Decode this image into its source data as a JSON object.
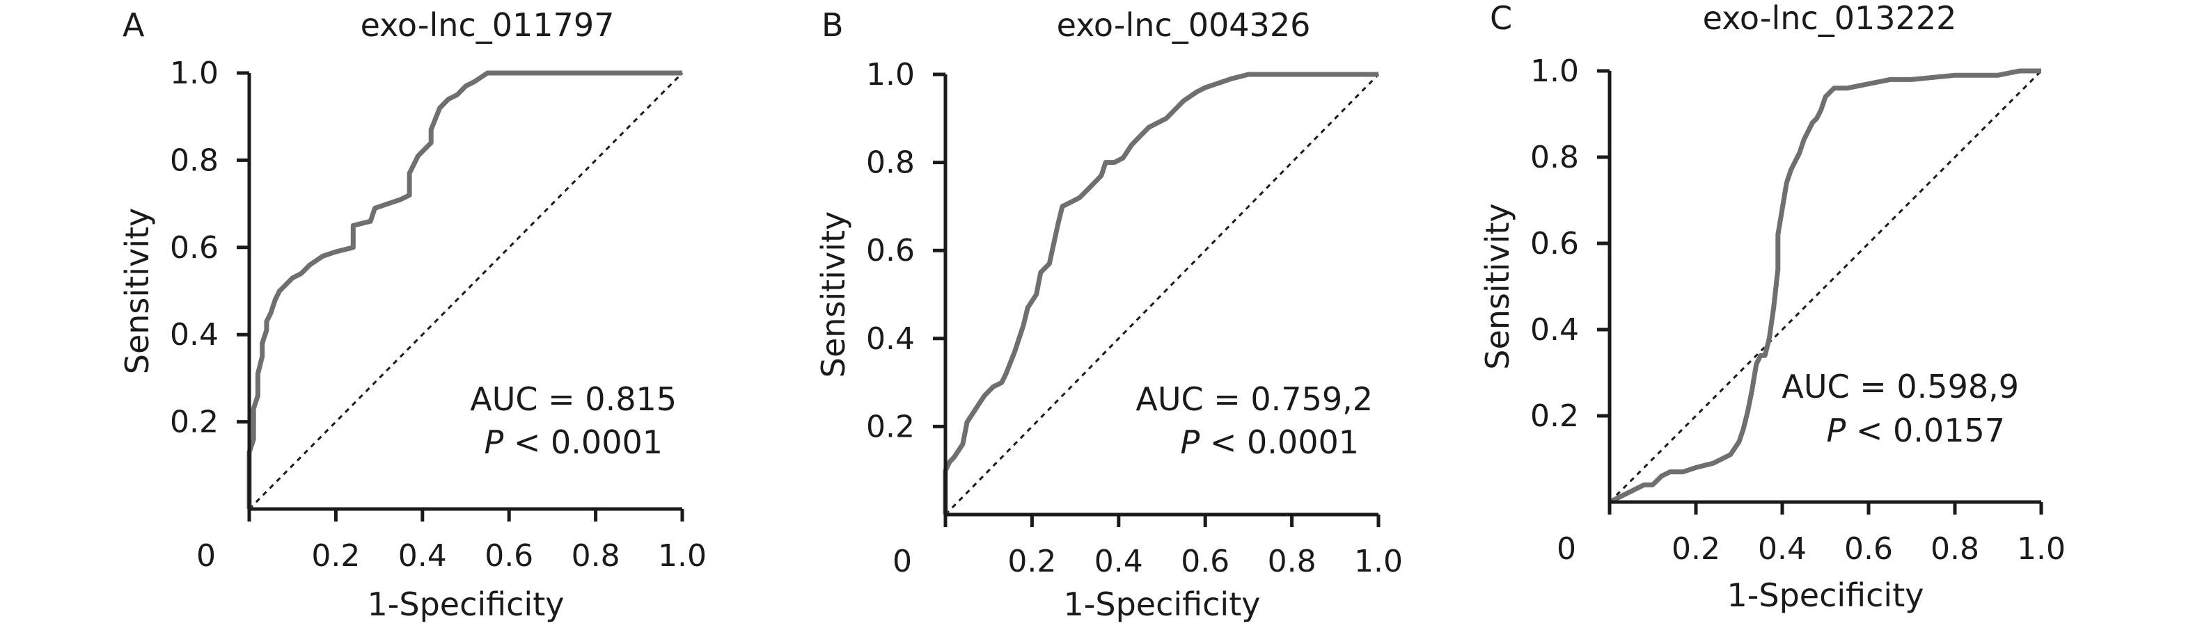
{
  "chart_data": [
    {
      "type": "line",
      "panel_label": "A",
      "title": "exo-lnc_011797",
      "xlabel": "1-Specificity",
      "ylabel": "Sensitivity",
      "xlim": [
        0,
        1
      ],
      "ylim": [
        0,
        1
      ],
      "origin_label": "0",
      "x_ticks": [
        "0.2",
        "0.4",
        "0.6",
        "0.8",
        "1.0"
      ],
      "y_ticks": [
        "0.2",
        "0.4",
        "0.6",
        "0.8",
        "1.0"
      ],
      "annotation": {
        "auc": "AUC = 0.815",
        "p_italic": "P",
        "p_rest": " < 0.0001"
      },
      "reference_line": {
        "x": [
          0,
          1
        ],
        "y": [
          0,
          1
        ],
        "style": "dashed"
      },
      "series": [
        {
          "x": [
            0.0,
            0.0,
            0.01,
            0.01,
            0.02,
            0.02,
            0.03,
            0.03,
            0.04,
            0.04,
            0.05,
            0.06,
            0.07,
            0.08,
            0.1,
            0.12,
            0.14,
            0.17,
            0.2,
            0.24,
            0.24,
            0.28,
            0.29,
            0.32,
            0.35,
            0.37,
            0.37,
            0.39,
            0.42,
            0.42,
            0.44,
            0.46,
            0.48,
            0.5,
            0.52,
            0.55,
            0.6,
            0.7,
            0.8,
            0.9,
            1.0
          ],
          "y": [
            0.0,
            0.13,
            0.16,
            0.23,
            0.26,
            0.31,
            0.35,
            0.38,
            0.41,
            0.43,
            0.45,
            0.48,
            0.5,
            0.51,
            0.53,
            0.54,
            0.56,
            0.58,
            0.59,
            0.6,
            0.65,
            0.66,
            0.69,
            0.7,
            0.71,
            0.72,
            0.77,
            0.81,
            0.84,
            0.87,
            0.92,
            0.94,
            0.95,
            0.97,
            0.98,
            1.0,
            1.0,
            1.0,
            1.0,
            1.0,
            1.0
          ]
        }
      ]
    },
    {
      "type": "line",
      "panel_label": "B",
      "title": "exo-lnc_004326",
      "xlabel": "1-Specificity",
      "ylabel": "Sensitivity",
      "xlim": [
        0,
        1
      ],
      "ylim": [
        0,
        1
      ],
      "origin_label": "0",
      "x_ticks": [
        "0.2",
        "0.4",
        "0.6",
        "0.8",
        "1.0"
      ],
      "y_ticks": [
        "0.2",
        "0.4",
        "0.6",
        "0.8",
        "1.0"
      ],
      "annotation": {
        "auc": "AUC = 0.759,2",
        "p_italic": "P",
        "p_rest": " < 0.0001"
      },
      "reference_line": {
        "x": [
          0,
          1
        ],
        "y": [
          0,
          1
        ],
        "style": "dashed"
      },
      "series": [
        {
          "x": [
            0.0,
            0.0,
            0.01,
            0.02,
            0.04,
            0.05,
            0.07,
            0.09,
            0.11,
            0.13,
            0.14,
            0.16,
            0.18,
            0.19,
            0.21,
            0.22,
            0.24,
            0.26,
            0.27,
            0.29,
            0.31,
            0.32,
            0.34,
            0.36,
            0.37,
            0.39,
            0.41,
            0.43,
            0.45,
            0.47,
            0.49,
            0.51,
            0.53,
            0.55,
            0.58,
            0.6,
            0.63,
            0.66,
            0.7,
            0.75,
            0.8,
            0.9,
            1.0
          ],
          "y": [
            0.0,
            0.1,
            0.12,
            0.13,
            0.16,
            0.21,
            0.24,
            0.27,
            0.29,
            0.3,
            0.32,
            0.37,
            0.43,
            0.47,
            0.5,
            0.55,
            0.57,
            0.66,
            0.7,
            0.71,
            0.72,
            0.73,
            0.75,
            0.77,
            0.8,
            0.8,
            0.81,
            0.84,
            0.86,
            0.88,
            0.89,
            0.9,
            0.92,
            0.94,
            0.96,
            0.97,
            0.98,
            0.99,
            1.0,
            1.0,
            1.0,
            1.0,
            1.0
          ]
        }
      ]
    },
    {
      "type": "line",
      "panel_label": "C",
      "title": "exo-lnc_013222",
      "xlabel": "1-Specificity",
      "ylabel": "Sensitivity",
      "xlim": [
        0,
        1
      ],
      "ylim": [
        0,
        1
      ],
      "origin_label": "0",
      "x_ticks": [
        "0.2",
        "0.4",
        "0.6",
        "0.8",
        "1.0"
      ],
      "y_ticks": [
        "0.2",
        "0.4",
        "0.6",
        "0.8",
        "1.0"
      ],
      "annotation": {
        "auc": "AUC = 0.598,9",
        "p_italic": "P",
        "p_rest": " < 0.0157"
      },
      "reference_line": {
        "x": [
          0,
          1
        ],
        "y": [
          0,
          1
        ],
        "style": "dashed"
      },
      "series": [
        {
          "x": [
            0.0,
            0.02,
            0.04,
            0.06,
            0.08,
            0.1,
            0.12,
            0.14,
            0.17,
            0.2,
            0.24,
            0.28,
            0.3,
            0.31,
            0.32,
            0.33,
            0.34,
            0.35,
            0.36,
            0.37,
            0.38,
            0.39,
            0.39,
            0.4,
            0.41,
            0.42,
            0.43,
            0.44,
            0.45,
            0.46,
            0.47,
            0.48,
            0.49,
            0.5,
            0.52,
            0.55,
            0.6,
            0.65,
            0.7,
            0.8,
            0.9,
            0.95,
            1.0
          ],
          "y": [
            0.0,
            0.01,
            0.02,
            0.03,
            0.04,
            0.04,
            0.06,
            0.07,
            0.07,
            0.08,
            0.09,
            0.11,
            0.14,
            0.17,
            0.21,
            0.26,
            0.32,
            0.34,
            0.34,
            0.38,
            0.45,
            0.54,
            0.62,
            0.68,
            0.74,
            0.77,
            0.79,
            0.81,
            0.84,
            0.86,
            0.88,
            0.89,
            0.91,
            0.94,
            0.96,
            0.96,
            0.97,
            0.98,
            0.98,
            0.99,
            0.99,
            1.0,
            1.0
          ]
        }
      ]
    }
  ]
}
